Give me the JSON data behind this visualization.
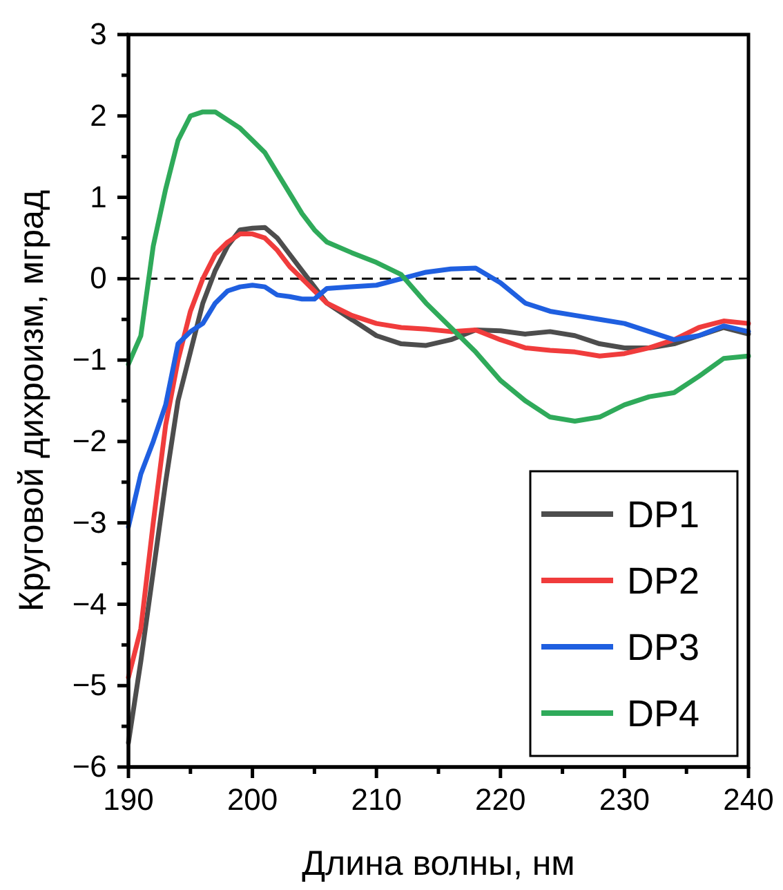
{
  "chart_data": {
    "type": "line",
    "xlabel": "Длина волны, нм",
    "ylabel": "Круговой дихроизм, мград",
    "x": [
      190,
      191,
      192,
      193,
      194,
      195,
      196,
      197,
      198,
      199,
      200,
      201,
      202,
      203,
      204,
      205,
      206,
      208,
      210,
      212,
      214,
      216,
      218,
      220,
      222,
      224,
      226,
      228,
      230,
      232,
      234,
      236,
      238,
      240
    ],
    "series": [
      {
        "name": "DP1",
        "color": "#4d4d4d",
        "values": [
          -5.7,
          -4.7,
          -3.6,
          -2.5,
          -1.5,
          -0.9,
          -0.3,
          0.1,
          0.4,
          0.6,
          0.62,
          0.63,
          0.5,
          0.3,
          0.1,
          -0.1,
          -0.3,
          -0.5,
          -0.7,
          -0.8,
          -0.82,
          -0.75,
          -0.63,
          -0.64,
          -0.68,
          -0.65,
          -0.7,
          -0.8,
          -0.85,
          -0.85,
          -0.8,
          -0.7,
          -0.6,
          -0.68
        ]
      },
      {
        "name": "DP2",
        "color": "#f03c3c",
        "values": [
          -4.9,
          -4.3,
          -3.0,
          -1.8,
          -1.0,
          -0.4,
          0.0,
          0.3,
          0.45,
          0.55,
          0.55,
          0.5,
          0.35,
          0.15,
          0.0,
          -0.15,
          -0.3,
          -0.45,
          -0.55,
          -0.6,
          -0.62,
          -0.65,
          -0.63,
          -0.75,
          -0.85,
          -0.88,
          -0.9,
          -0.95,
          -0.92,
          -0.85,
          -0.75,
          -0.6,
          -0.52,
          -0.55
        ]
      },
      {
        "name": "DP3",
        "color": "#1f5fe0",
        "values": [
          -3.05,
          -2.4,
          -2.0,
          -1.55,
          -0.8,
          -0.65,
          -0.55,
          -0.3,
          -0.15,
          -0.1,
          -0.08,
          -0.1,
          -0.2,
          -0.22,
          -0.25,
          -0.25,
          -0.12,
          -0.1,
          -0.08,
          0.0,
          0.08,
          0.12,
          0.13,
          -0.05,
          -0.3,
          -0.4,
          -0.45,
          -0.5,
          -0.55,
          -0.65,
          -0.75,
          -0.7,
          -0.58,
          -0.65
        ]
      },
      {
        "name": "DP4",
        "color": "#2faa5a",
        "values": [
          -1.05,
          -0.7,
          0.4,
          1.1,
          1.7,
          2.0,
          2.05,
          2.05,
          1.95,
          1.85,
          1.7,
          1.55,
          1.3,
          1.05,
          0.8,
          0.6,
          0.45,
          0.32,
          0.2,
          0.05,
          -0.3,
          -0.6,
          -0.9,
          -1.25,
          -1.5,
          -1.7,
          -1.75,
          -1.7,
          -1.55,
          -1.45,
          -1.4,
          -1.2,
          -0.98,
          -0.95
        ]
      }
    ],
    "xlim": [
      190,
      240
    ],
    "xticks": [
      190,
      {
        "value": 195,
        "label": null
      },
      200,
      {
        "value": 205,
        "label": null
      },
      210,
      {
        "value": 215,
        "label": null
      },
      220,
      {
        "value": 225,
        "label": null
      },
      230,
      {
        "value": 235,
        "label": null
      },
      240
    ],
    "ylim": [
      -6,
      3
    ],
    "yticks": [
      -6,
      {
        "value": -5.5,
        "label": null
      },
      -5,
      {
        "value": -4.5,
        "label": null
      },
      -4,
      {
        "value": -3.5,
        "label": null
      },
      -3,
      {
        "value": -2.5,
        "label": null
      },
      -2,
      {
        "value": -1.5,
        "label": null
      },
      -1,
      {
        "value": -0.5,
        "label": null
      },
      0,
      {
        "value": 0.5,
        "label": null
      },
      1,
      {
        "value": 1.5,
        "label": null
      },
      2,
      {
        "value": 2.5,
        "label": null
      },
      3
    ],
    "ref_lines": [
      {
        "axis": "y",
        "value": 0,
        "color": "#000000",
        "line_style": "dashed"
      }
    ],
    "legend": "bottom right",
    "grid": false,
    "line_style": "solid",
    "marker": "none"
  }
}
